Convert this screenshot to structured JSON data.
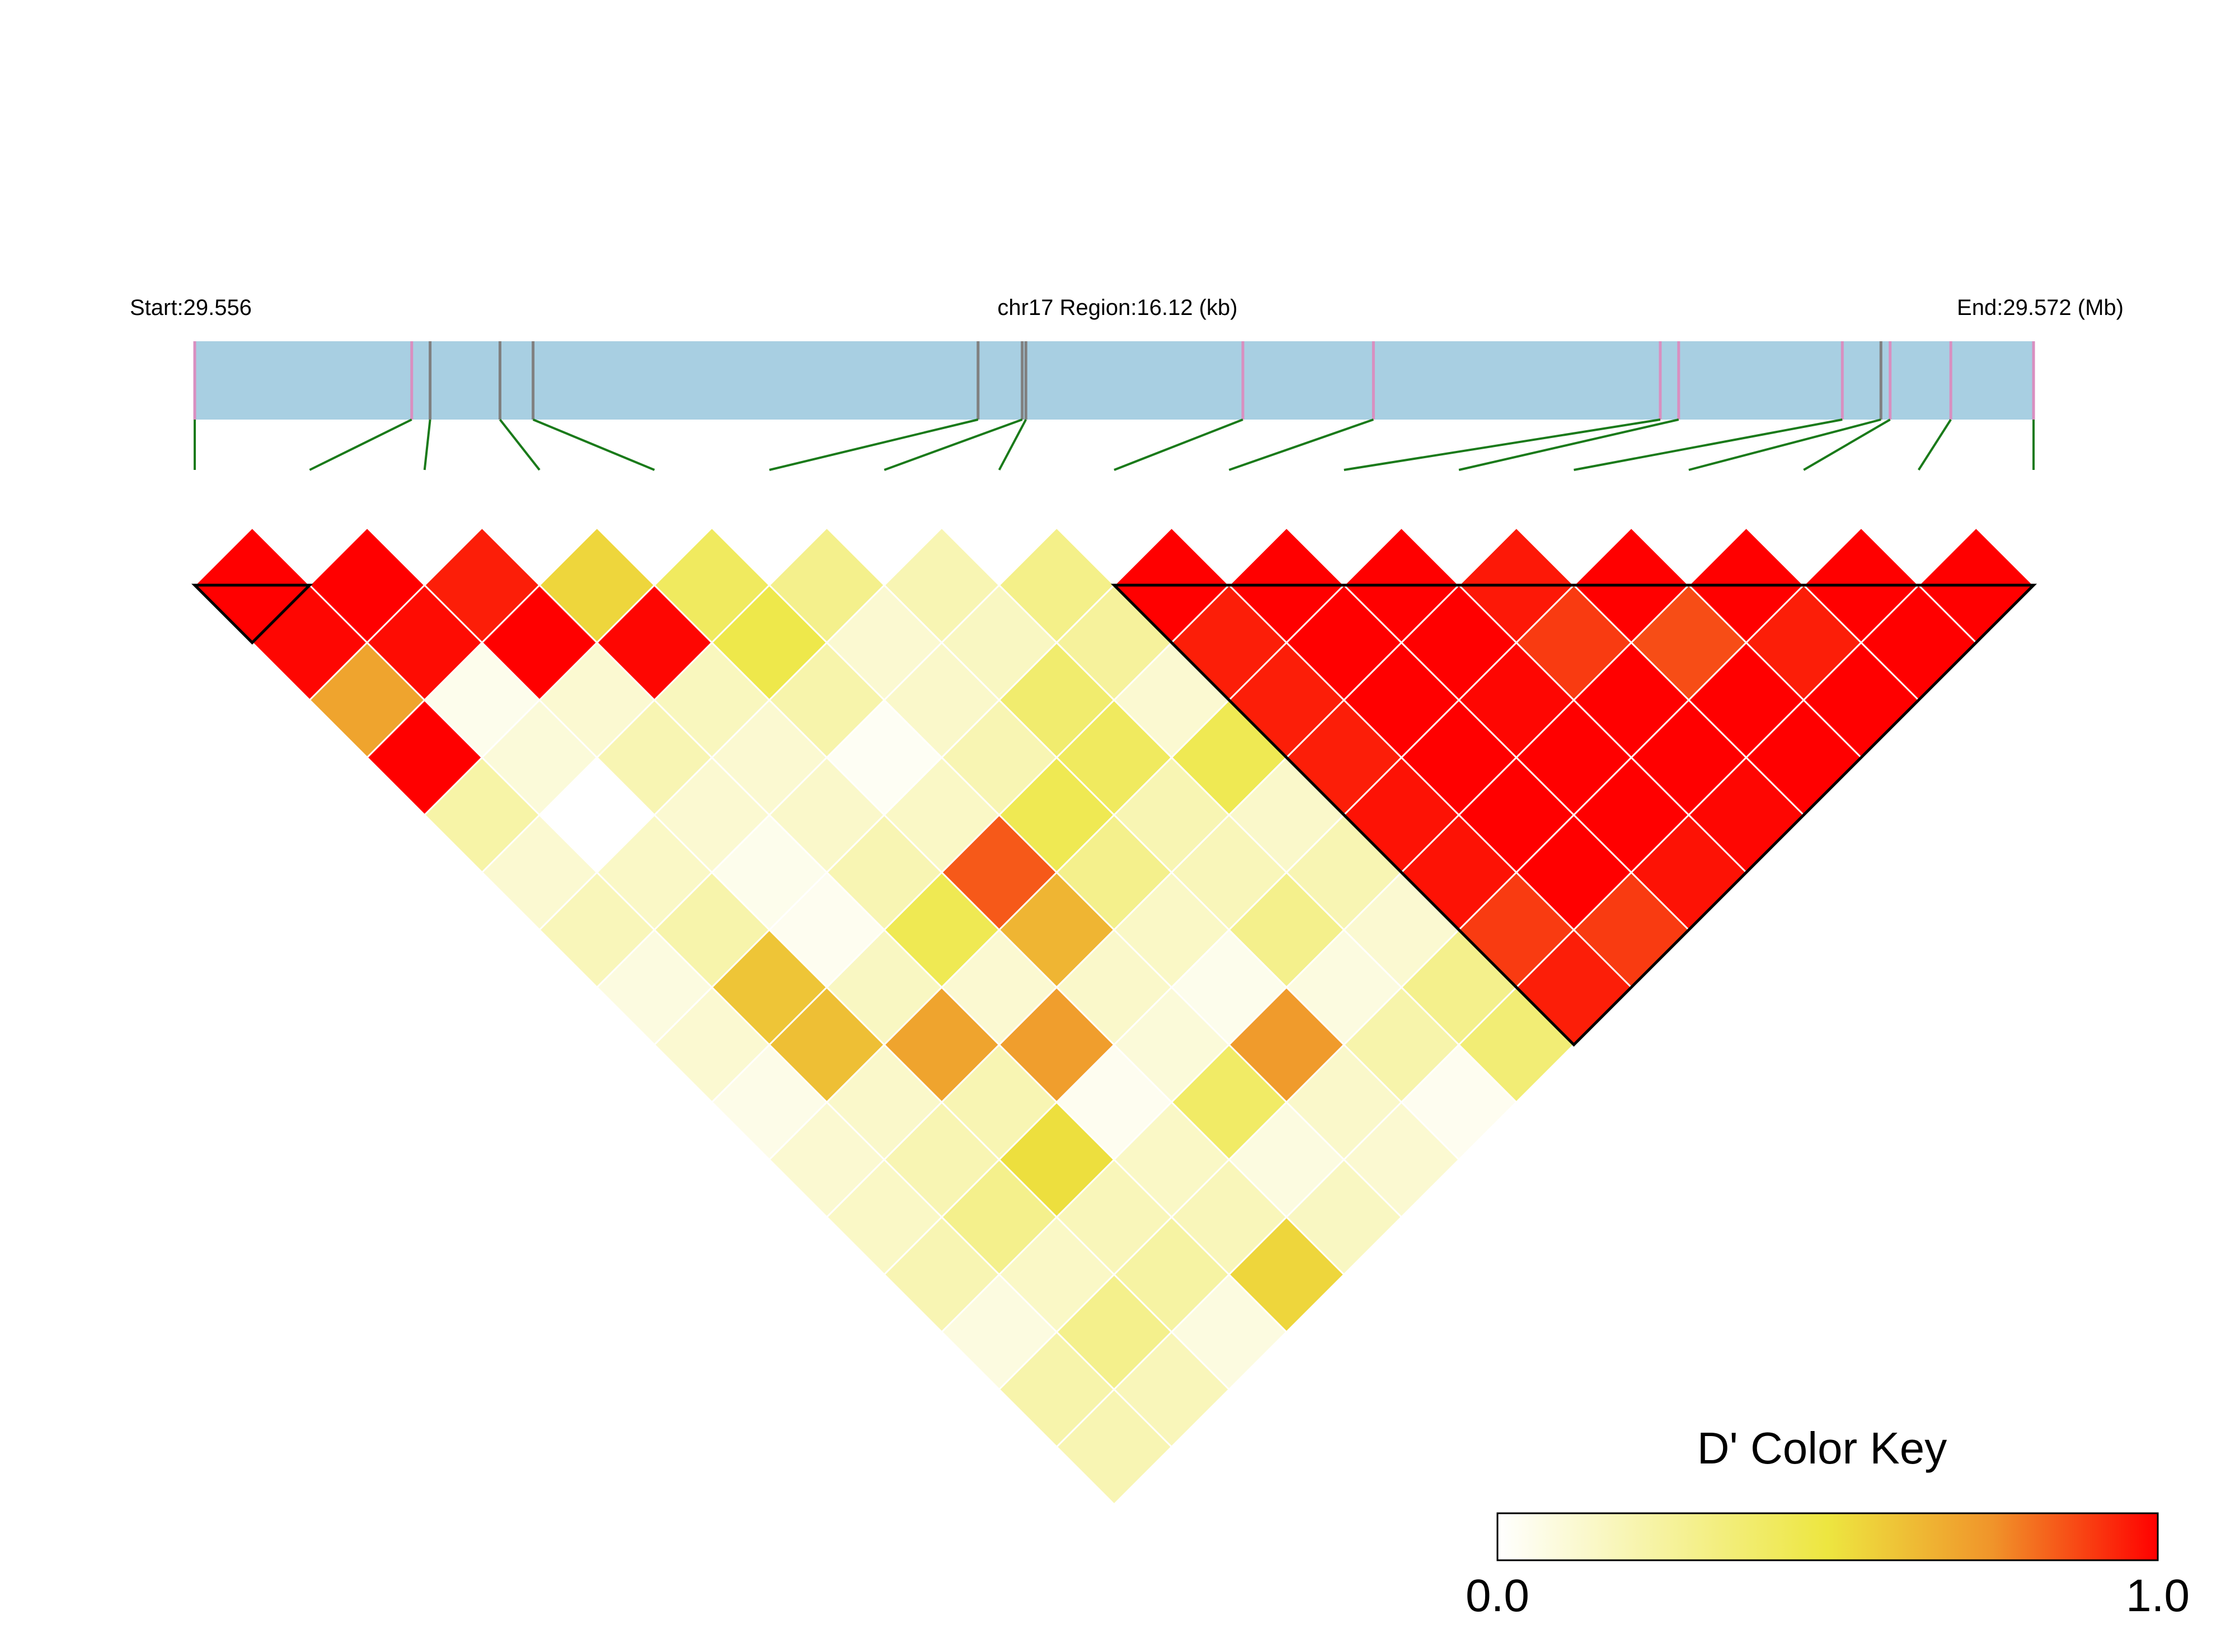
{
  "header": {
    "start_label": "Start:29.556",
    "region_label": "chr17 Region:16.12 (kb)",
    "end_label": "End:29.572 (Mb)"
  },
  "colorkey": {
    "title": "D' Color Key",
    "min_label": "0.0",
    "max_label": "1.0",
    "stops": [
      {
        "v": 0.0,
        "c": "#ffffff"
      },
      {
        "v": 0.5,
        "c": "#ede640"
      },
      {
        "v": 0.75,
        "c": "#f0942a"
      },
      {
        "v": 1.0,
        "c": "#ff0000"
      }
    ]
  },
  "colors": {
    "gene_bar": "#a8cfe2",
    "snp_tick_pink": "#d98fc0",
    "snp_tick_gray": "#808080",
    "connector_green": "#1a7a1a",
    "block_outline": "#000000",
    "cell_border": "#ffffff"
  },
  "chart_data": {
    "type": "heatmap",
    "metric": "D'",
    "n_snps": 17,
    "region_start_mb": 29.556,
    "region_end_mb": 29.572,
    "snp_relative_positions": [
      0.0,
      0.118,
      0.128,
      0.166,
      0.184,
      0.426,
      0.45,
      0.452,
      0.57,
      0.641,
      0.797,
      0.807,
      0.896,
      0.917,
      0.922,
      0.955,
      1.0
    ],
    "pink_tick_snps": [
      0,
      1,
      8,
      9,
      10,
      11,
      12,
      14,
      15,
      16
    ],
    "haplotype_blocks": [
      [
        0,
        1
      ],
      [
        8,
        16
      ]
    ],
    "dprime_matrix": [
      [
        null,
        1.0,
        0.99,
        0.7,
        1.0,
        0.23,
        0.12,
        0.18,
        0.08,
        0.12,
        0.06,
        0.12,
        0.15,
        0.2,
        0.08,
        0.22,
        0.2
      ],
      [
        null,
        null,
        1.0,
        0.98,
        0.05,
        0.1,
        0.0,
        0.15,
        0.22,
        0.6,
        0.62,
        0.14,
        0.2,
        0.3,
        0.15,
        0.3,
        0.18
      ],
      [
        null,
        null,
        null,
        0.95,
        1.0,
        0.12,
        0.2,
        0.12,
        0.05,
        0.04,
        0.16,
        0.7,
        0.2,
        0.52,
        0.18,
        0.24,
        0.08
      ],
      [
        null,
        null,
        null,
        null,
        0.55,
        0.99,
        0.17,
        0.12,
        0.14,
        0.2,
        0.45,
        0.12,
        0.72,
        0.04,
        0.15,
        0.18,
        0.55
      ],
      [
        null,
        null,
        null,
        null,
        null,
        0.42,
        0.47,
        0.22,
        0.03,
        0.15,
        0.85,
        0.65,
        0.14,
        0.1,
        0.4,
        0.08,
        0.16
      ],
      [
        null,
        null,
        null,
        null,
        null,
        null,
        0.3,
        0.12,
        0.14,
        0.2,
        0.45,
        0.3,
        0.15,
        0.05,
        0.73,
        0.14,
        0.12
      ],
      [
        null,
        null,
        null,
        null,
        null,
        null,
        null,
        0.2,
        0.16,
        0.38,
        0.42,
        0.2,
        0.18,
        0.3,
        0.08,
        0.22,
        0.04
      ],
      [
        null,
        null,
        null,
        null,
        null,
        null,
        null,
        null,
        0.31,
        0.26,
        0.12,
        0.45,
        0.14,
        0.2,
        0.12,
        0.3,
        0.36
      ],
      [
        null,
        null,
        null,
        null,
        null,
        null,
        null,
        null,
        null,
        1.0,
        0.95,
        0.95,
        0.95,
        0.97,
        0.97,
        0.9,
        0.95
      ],
      [
        null,
        null,
        null,
        null,
        null,
        null,
        null,
        null,
        null,
        null,
        1.0,
        1.0,
        1.0,
        1.0,
        1.0,
        1.0,
        0.9
      ],
      [
        null,
        null,
        null,
        null,
        null,
        null,
        null,
        null,
        null,
        null,
        null,
        1.0,
        1.0,
        0.99,
        1.0,
        1.0,
        0.97
      ],
      [
        null,
        null,
        null,
        null,
        null,
        null,
        null,
        null,
        null,
        null,
        null,
        null,
        0.96,
        0.9,
        1.0,
        1.0,
        0.99
      ],
      [
        null,
        null,
        null,
        null,
        null,
        null,
        null,
        null,
        null,
        null,
        null,
        null,
        null,
        1.0,
        0.87,
        1.0,
        1.0
      ],
      [
        null,
        null,
        null,
        null,
        null,
        null,
        null,
        null,
        null,
        null,
        null,
        null,
        null,
        null,
        1.0,
        0.95,
        1.0
      ],
      [
        null,
        null,
        null,
        null,
        null,
        null,
        null,
        null,
        null,
        null,
        null,
        null,
        null,
        null,
        null,
        1.0,
        1.0
      ],
      [
        null,
        null,
        null,
        null,
        null,
        null,
        null,
        null,
        null,
        null,
        null,
        null,
        null,
        null,
        null,
        null,
        1.0
      ],
      [
        null,
        null,
        null,
        null,
        null,
        null,
        null,
        null,
        null,
        null,
        null,
        null,
        null,
        null,
        null,
        null,
        null
      ]
    ]
  }
}
